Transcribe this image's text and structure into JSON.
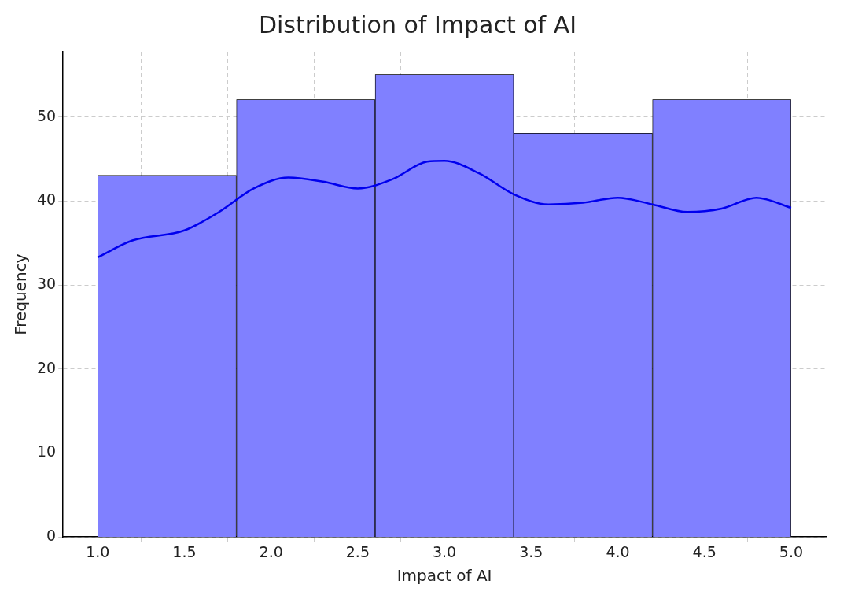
{
  "chart_data": {
    "type": "histogram",
    "title": "Distribution of Impact of AI",
    "xlabel": "Impact of AI",
    "ylabel": "Frequency",
    "bins": [
      1.0,
      1.8,
      2.6,
      3.4,
      4.2,
      5.0
    ],
    "values": [
      43,
      52,
      55,
      48,
      52
    ],
    "color": "#8080ff",
    "series": [
      {
        "type": "line",
        "color": "#0000ee",
        "x": [
          1.0,
          1.2,
          1.5,
          1.7,
          1.9,
          2.1,
          2.3,
          2.5,
          2.7,
          2.9,
          3.0,
          3.2,
          3.4,
          3.6,
          3.8,
          4.0,
          4.2,
          4.4,
          4.6,
          4.8,
          5.0
        ],
        "values": [
          33.3,
          35.3,
          36.5,
          38.7,
          41.5,
          42.8,
          42.3,
          41.5,
          42.6,
          44.7,
          44.8,
          43.3,
          40.8,
          39.6,
          39.8,
          40.4,
          39.6,
          38.7,
          39.1,
          40.4,
          39.2
        ]
      }
    ],
    "xlim": [
      0.8,
      5.2
    ],
    "ylim": [
      0,
      57.75
    ],
    "xticks": [
      {
        "value": 1,
        "label": "1.0"
      },
      1.5,
      {
        "value": 2,
        "label": "2.0"
      },
      2.5,
      {
        "value": 3,
        "label": "3.0"
      },
      3.5,
      {
        "value": 4,
        "label": "4.0"
      },
      4.5,
      {
        "value": 5,
        "label": "5.0"
      }
    ],
    "yticks": [
      0,
      10,
      20,
      30,
      40,
      50
    ],
    "grid": true
  }
}
